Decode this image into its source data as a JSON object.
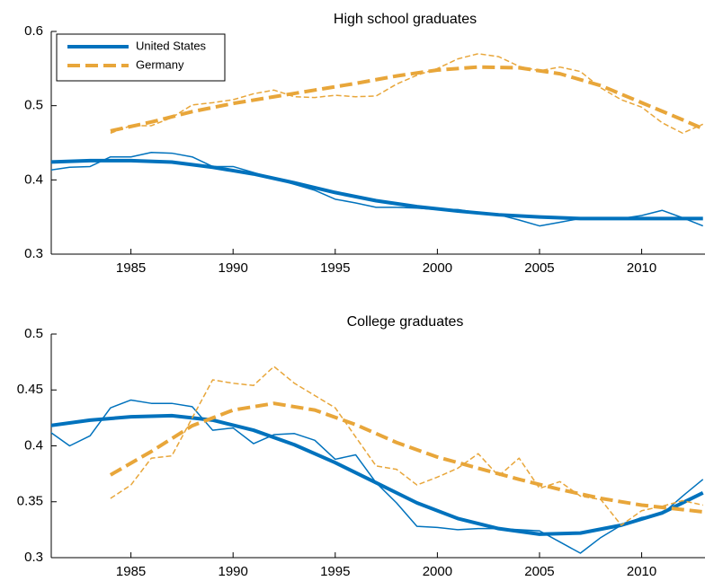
{
  "chart_data": [
    {
      "type": "line",
      "title": "High school graduates",
      "xlim": [
        1981.1,
        2013.1
      ],
      "xticks": [
        1985,
        1990,
        1995,
        2000,
        2005,
        2010
      ],
      "ylim": [
        0.3,
        0.6
      ],
      "yticks": [
        0.3,
        0.4,
        0.5,
        0.6
      ],
      "legend": "upper left",
      "series": [
        {
          "color": "#0072bd",
          "linewidth": 1.5,
          "dashed": false,
          "x": [
            1981,
            1982,
            1983,
            1984,
            1985,
            1986,
            1987,
            1988,
            1989,
            1990,
            1991,
            1992,
            1993,
            1994,
            1995,
            1996,
            1997,
            1998,
            1999,
            2000,
            2001,
            2002,
            2003,
            2004,
            2005,
            2006,
            2007,
            2008,
            2009,
            2010,
            2011,
            2012,
            2013
          ],
          "values": [
            0.413,
            0.417,
            0.418,
            0.431,
            0.431,
            0.437,
            0.436,
            0.431,
            0.418,
            0.418,
            0.41,
            0.402,
            0.394,
            0.386,
            0.374,
            0.369,
            0.363,
            0.363,
            0.362,
            0.36,
            0.36,
            0.356,
            0.353,
            0.346,
            0.338,
            0.343,
            0.348,
            0.348,
            0.348,
            0.352,
            0.359,
            0.349,
            0.338
          ]
        },
        {
          "name": "United States",
          "color": "#0072bd",
          "linewidth": 4,
          "dashed": false,
          "x": [
            1981,
            1983,
            1985,
            1987,
            1989,
            1991,
            1993,
            1995,
            1997,
            1999,
            2001,
            2003,
            2005,
            2007,
            2009,
            2011,
            2013
          ],
          "values": [
            0.424,
            0.426,
            0.426,
            0.424,
            0.417,
            0.408,
            0.396,
            0.383,
            0.372,
            0.364,
            0.358,
            0.353,
            0.35,
            0.348,
            0.348,
            0.348,
            0.348
          ]
        },
        {
          "color": "#e8a63a",
          "linewidth": 1.5,
          "dashed": true,
          "x": [
            1984,
            1985,
            1986,
            1987,
            1988,
            1989,
            1990,
            1991,
            1992,
            1993,
            1994,
            1995,
            1996,
            1997,
            1998,
            1999,
            2000,
            2001,
            2002,
            2003,
            2004,
            2005,
            2006,
            2007,
            2008,
            2009,
            2010,
            2011,
            2012,
            2013
          ],
          "values": [
            0.463,
            0.473,
            0.473,
            0.484,
            0.501,
            0.504,
            0.508,
            0.516,
            0.521,
            0.512,
            0.511,
            0.514,
            0.512,
            0.513,
            0.529,
            0.541,
            0.55,
            0.563,
            0.57,
            0.566,
            0.553,
            0.547,
            0.552,
            0.546,
            0.524,
            0.508,
            0.498,
            0.477,
            0.463,
            0.475
          ]
        },
        {
          "name": "Germany",
          "color": "#e8a63a",
          "linewidth": 4,
          "dashed": true,
          "x": [
            1984,
            1986,
            1988,
            1990,
            1992,
            1994,
            1996,
            1998,
            2000,
            2002,
            2004,
            2006,
            2008,
            2010,
            2012,
            2013
          ],
          "values": [
            0.466,
            0.478,
            0.492,
            0.503,
            0.512,
            0.521,
            0.53,
            0.54,
            0.548,
            0.552,
            0.551,
            0.543,
            0.527,
            0.504,
            0.481,
            0.469
          ]
        }
      ]
    },
    {
      "type": "line",
      "title": "College graduates",
      "xlim": [
        1981.1,
        2013.1
      ],
      "xticks": [
        1985,
        1990,
        1995,
        2000,
        2005,
        2010
      ],
      "ylim": [
        0.3,
        0.5
      ],
      "yticks": [
        0.3,
        0.35,
        0.4,
        0.45,
        0.5
      ],
      "series": [
        {
          "color": "#0072bd",
          "linewidth": 1.5,
          "dashed": false,
          "x": [
            1981,
            1982,
            1983,
            1984,
            1985,
            1986,
            1987,
            1988,
            1989,
            1990,
            1991,
            1992,
            1993,
            1994,
            1995,
            1996,
            1997,
            1998,
            1999,
            2000,
            2001,
            2002,
            2003,
            2004,
            2005,
            2006,
            2007,
            2008,
            2009,
            2010,
            2011,
            2012,
            2013
          ],
          "values": [
            0.413,
            0.4,
            0.409,
            0.434,
            0.441,
            0.438,
            0.438,
            0.435,
            0.414,
            0.416,
            0.402,
            0.41,
            0.411,
            0.405,
            0.388,
            0.392,
            0.367,
            0.349,
            0.328,
            0.327,
            0.325,
            0.326,
            0.326,
            0.325,
            0.324,
            0.314,
            0.304,
            0.318,
            0.329,
            0.336,
            0.339,
            0.355,
            0.37
          ]
        },
        {
          "color": "#0072bd",
          "linewidth": 4,
          "dashed": false,
          "x": [
            1981,
            1983,
            1985,
            1987,
            1989,
            1991,
            1993,
            1995,
            1997,
            1999,
            2001,
            2003,
            2005,
            2007,
            2009,
            2011,
            2013
          ],
          "values": [
            0.418,
            0.423,
            0.426,
            0.427,
            0.423,
            0.414,
            0.401,
            0.385,
            0.367,
            0.349,
            0.335,
            0.326,
            0.321,
            0.322,
            0.329,
            0.34,
            0.358
          ]
        },
        {
          "color": "#e8a63a",
          "linewidth": 1.5,
          "dashed": true,
          "x": [
            1984,
            1985,
            1986,
            1987,
            1988,
            1989,
            1990,
            1991,
            1992,
            1993,
            1994,
            1995,
            1996,
            1997,
            1998,
            1999,
            2000,
            2001,
            2002,
            2003,
            2004,
            2005,
            2006,
            2007,
            2008,
            2009,
            2010,
            2011,
            2012,
            2013
          ],
          "values": [
            0.353,
            0.365,
            0.389,
            0.391,
            0.425,
            0.459,
            0.456,
            0.454,
            0.471,
            0.456,
            0.445,
            0.434,
            0.408,
            0.382,
            0.379,
            0.365,
            0.372,
            0.38,
            0.393,
            0.373,
            0.389,
            0.362,
            0.368,
            0.355,
            0.352,
            0.329,
            0.342,
            0.346,
            0.351,
            0.347
          ]
        },
        {
          "color": "#e8a63a",
          "linewidth": 4,
          "dashed": true,
          "x": [
            1984,
            1986,
            1988,
            1990,
            1992,
            1994,
            1996,
            1998,
            2000,
            2002,
            2004,
            2006,
            2008,
            2010,
            2012,
            2013
          ],
          "values": [
            0.374,
            0.395,
            0.418,
            0.432,
            0.438,
            0.432,
            0.419,
            0.403,
            0.39,
            0.38,
            0.37,
            0.361,
            0.353,
            0.347,
            0.343,
            0.341
          ]
        }
      ]
    }
  ]
}
